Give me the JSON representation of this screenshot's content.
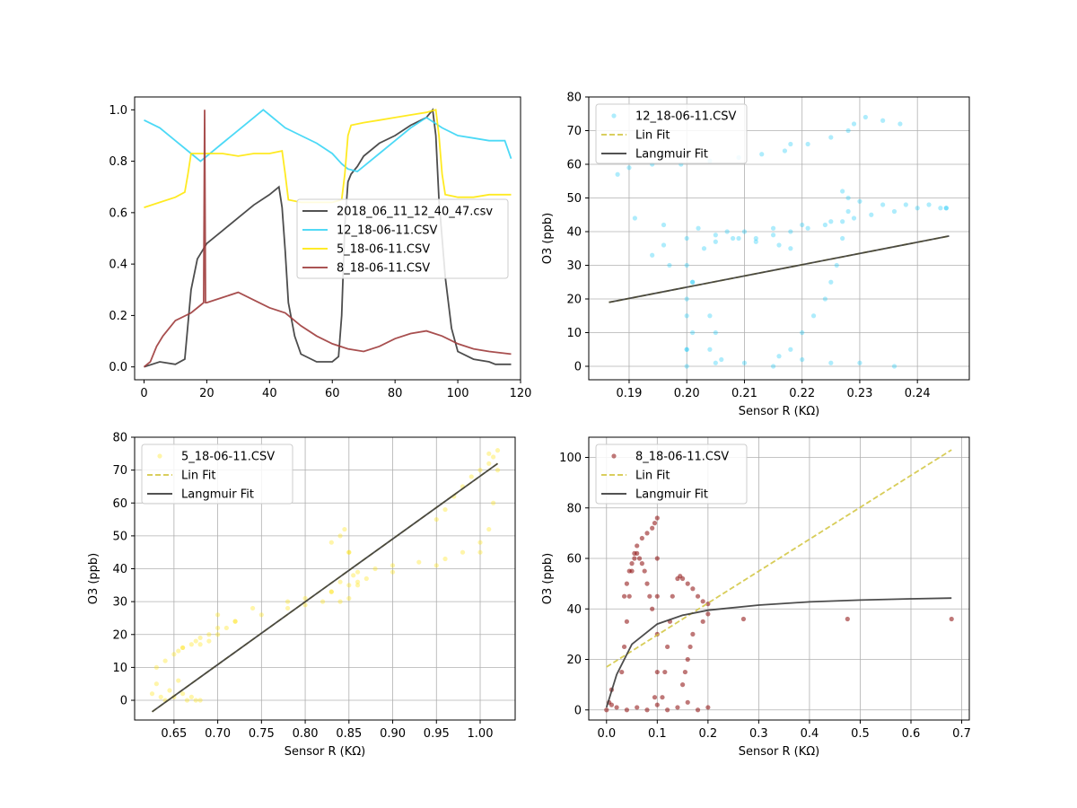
{
  "chart_data": [
    {
      "type": "line",
      "title": "",
      "xlabel": "",
      "ylabel": "",
      "xlim": [
        -3,
        120
      ],
      "ylim": [
        -0.05,
        1.05
      ],
      "xticks": [
        0,
        20,
        40,
        60,
        80,
        100,
        120
      ],
      "yticks": [
        0.0,
        0.2,
        0.4,
        0.6,
        0.8,
        1.0
      ],
      "grid": false,
      "legend_position": "center-right",
      "series": [
        {
          "name": "2018_06_11_12_40_47.csv",
          "color": "#3a3a3a",
          "x": [
            0,
            5,
            10,
            13,
            15,
            17,
            20,
            25,
            30,
            35,
            40,
            43,
            44,
            45,
            46,
            48,
            50,
            55,
            60,
            62,
            63,
            64,
            65,
            66,
            68,
            70,
            75,
            80,
            85,
            90,
            92,
            93,
            94,
            96,
            98,
            100,
            105,
            110,
            112,
            117
          ],
          "y": [
            0.0,
            0.02,
            0.01,
            0.03,
            0.3,
            0.42,
            0.48,
            0.53,
            0.58,
            0.63,
            0.67,
            0.7,
            0.62,
            0.45,
            0.25,
            0.12,
            0.05,
            0.02,
            0.02,
            0.04,
            0.2,
            0.55,
            0.72,
            0.75,
            0.78,
            0.82,
            0.87,
            0.9,
            0.94,
            0.97,
            1.0,
            0.9,
            0.65,
            0.35,
            0.15,
            0.06,
            0.03,
            0.02,
            0.01,
            0.01
          ]
        },
        {
          "name": "12_18-06-11.CSV",
          "color": "#39d5f5",
          "x": [
            0,
            5,
            10,
            15,
            18,
            20,
            25,
            30,
            35,
            38,
            40,
            45,
            50,
            55,
            60,
            63,
            65,
            68,
            70,
            75,
            80,
            85,
            90,
            95,
            100,
            105,
            110,
            115,
            117
          ],
          "y": [
            0.96,
            0.93,
            0.88,
            0.83,
            0.8,
            0.82,
            0.87,
            0.92,
            0.97,
            1.0,
            0.98,
            0.93,
            0.9,
            0.87,
            0.83,
            0.79,
            0.77,
            0.76,
            0.78,
            0.83,
            0.88,
            0.93,
            0.97,
            0.93,
            0.9,
            0.89,
            0.88,
            0.88,
            0.81
          ]
        },
        {
          "name": "5_18-06-11.CSV",
          "color": "#ffe80a",
          "x": [
            0,
            5,
            10,
            13,
            14,
            15,
            20,
            25,
            30,
            35,
            40,
            44,
            45,
            46,
            50,
            55,
            60,
            63,
            64,
            65,
            66,
            70,
            75,
            80,
            85,
            90,
            93,
            94,
            95,
            96,
            100,
            105,
            110,
            117
          ],
          "y": [
            0.62,
            0.64,
            0.66,
            0.68,
            0.75,
            0.83,
            0.83,
            0.83,
            0.82,
            0.83,
            0.83,
            0.84,
            0.75,
            0.65,
            0.64,
            0.64,
            0.64,
            0.65,
            0.75,
            0.9,
            0.94,
            0.95,
            0.96,
            0.97,
            0.98,
            0.99,
            1.0,
            0.9,
            0.75,
            0.67,
            0.66,
            0.66,
            0.67,
            0.67
          ]
        },
        {
          "name": "8_18-06-11.CSV",
          "color": "#9e3c3c",
          "x": [
            0,
            2,
            4,
            6,
            10,
            15,
            18,
            19,
            19.3,
            19.6,
            20,
            25,
            30,
            35,
            40,
            45,
            50,
            55,
            60,
            65,
            70,
            75,
            80,
            85,
            90,
            95,
            100,
            105,
            110,
            117
          ],
          "y": [
            0.0,
            0.02,
            0.08,
            0.12,
            0.18,
            0.21,
            0.24,
            0.25,
            1.0,
            0.25,
            0.25,
            0.27,
            0.29,
            0.26,
            0.23,
            0.21,
            0.16,
            0.12,
            0.09,
            0.07,
            0.06,
            0.08,
            0.11,
            0.13,
            0.14,
            0.12,
            0.09,
            0.07,
            0.06,
            0.05
          ]
        }
      ]
    },
    {
      "type": "scatter",
      "title": "",
      "xlabel": "Sensor R (KΩ)",
      "ylabel": "O3 (ppb)",
      "xlim": [
        0.183,
        0.249
      ],
      "ylim": [
        -4,
        80
      ],
      "xticks": [
        0.19,
        0.2,
        0.21,
        0.22,
        0.23,
        0.24
      ],
      "yticks": [
        0,
        10,
        20,
        30,
        40,
        50,
        60,
        70,
        80
      ],
      "grid": true,
      "legend_position": "top-left",
      "series": [
        {
          "name": "12_18-06-11.CSV",
          "kind": "scatter",
          "color": "#18c8f5",
          "x": [
            0.2,
            0.205,
            0.21,
            0.215,
            0.22,
            0.225,
            0.23,
            0.236,
            0.2,
            0.2,
            0.201,
            0.203,
            0.205,
            0.208,
            0.212,
            0.215,
            0.218,
            0.221,
            0.224,
            0.227,
            0.229,
            0.232,
            0.236,
            0.24,
            0.244,
            0.245,
            0.197,
            0.194,
            0.196,
            0.2,
            0.205,
            0.21,
            0.215,
            0.22,
            0.225,
            0.228,
            0.227,
            0.228,
            0.23,
            0.234,
            0.238,
            0.242,
            0.245,
            0.188,
            0.19,
            0.194,
            0.199,
            0.204,
            0.209,
            0.213,
            0.217,
            0.218,
            0.221,
            0.225,
            0.228,
            0.229,
            0.231,
            0.234,
            0.237,
            0.191,
            0.196,
            0.202,
            0.207,
            0.209,
            0.212,
            0.216,
            0.218,
            0.2,
            0.2,
            0.201,
            0.2,
            0.201,
            0.204,
            0.205,
            0.204,
            0.206,
            0.216,
            0.218,
            0.22,
            0.222,
            0.224,
            0.225,
            0.226,
            0.227
          ],
          "y": [
            0,
            1,
            1,
            0,
            2,
            1,
            1,
            0,
            5,
            15,
            25,
            35,
            37,
            38,
            38,
            39,
            40,
            41,
            42,
            43,
            44,
            45,
            46,
            47,
            47,
            47,
            30,
            33,
            36,
            38,
            39,
            40,
            41,
            42,
            43,
            46,
            52,
            50,
            49,
            48,
            48,
            48,
            47,
            57,
            59,
            60,
            60,
            61,
            62,
            63,
            64,
            66,
            66,
            68,
            70,
            72,
            74,
            73,
            72,
            44,
            42,
            41,
            40,
            38,
            37,
            36,
            35,
            30,
            20,
            10,
            5,
            25,
            15,
            10,
            5,
            2,
            3,
            5,
            10,
            15,
            20,
            25,
            30,
            38
          ]
        },
        {
          "name": "Lin Fit",
          "kind": "line",
          "dash": true,
          "color": "#d4c847",
          "x": [
            0.1865,
            0.2455
          ],
          "y": [
            19,
            38.7
          ]
        },
        {
          "name": "Langmuir Fit",
          "kind": "line",
          "color": "#3a3a3a",
          "x": [
            0.1865,
            0.2455
          ],
          "y": [
            19,
            38.7
          ]
        }
      ]
    },
    {
      "type": "scatter",
      "title": "",
      "xlabel": "Sensor R (KΩ)",
      "ylabel": "O3 (ppb)",
      "xlim": [
        0.605,
        1.04
      ],
      "ylim": [
        -6,
        80
      ],
      "xticks": [
        0.65,
        0.7,
        0.75,
        0.8,
        0.85,
        0.9,
        0.95,
        1.0
      ],
      "yticks": [
        0,
        10,
        20,
        30,
        40,
        50,
        60,
        70,
        80
      ],
      "grid": true,
      "legend_position": "top-left",
      "series": [
        {
          "name": "5_18-06-11.CSV",
          "kind": "scatter",
          "color": "#ffe30a",
          "x": [
            0.625,
            0.63,
            0.635,
            0.64,
            0.645,
            0.65,
            0.655,
            0.66,
            0.665,
            0.67,
            0.675,
            0.68,
            0.63,
            0.64,
            0.65,
            0.655,
            0.66,
            0.67,
            0.675,
            0.68,
            0.69,
            0.7,
            0.72,
            0.75,
            0.78,
            0.8,
            0.82,
            0.84,
            0.85,
            0.86,
            0.85,
            0.84,
            0.83,
            0.845,
            0.85,
            0.855,
            0.86,
            0.83,
            0.84,
            0.86,
            0.88,
            0.9,
            0.93,
            0.96,
            0.98,
            1.0,
            1.01,
            1.015,
            1.02,
            1.02,
            1.01,
            0.95,
            0.96,
            0.97,
            0.98,
            0.99,
            1.0,
            1.01,
            1.015,
            0.7,
            0.74,
            0.78,
            0.8,
            0.83,
            0.85,
            0.87,
            0.9,
            0.95,
            1.0,
            0.66,
            0.68,
            0.69,
            0.7,
            0.71,
            0.72
          ],
          "y": [
            2,
            5,
            1,
            0,
            3,
            1,
            6,
            2,
            0,
            1,
            0,
            0,
            10,
            12,
            14,
            15,
            16,
            17,
            18,
            19,
            20,
            22,
            24,
            26,
            28,
            29,
            30,
            30,
            31,
            36,
            45,
            50,
            48,
            52,
            45,
            38,
            35,
            33,
            36,
            39,
            40,
            41,
            42,
            43,
            45,
            48,
            52,
            60,
            70,
            76,
            75,
            55,
            58,
            62,
            65,
            68,
            70,
            72,
            74,
            26,
            28,
            30,
            31,
            33,
            35,
            37,
            39,
            41,
            45,
            16,
            17,
            18,
            20,
            22,
            24
          ]
        },
        {
          "name": "Lin Fit",
          "kind": "line",
          "dash": true,
          "color": "#d4c847",
          "x": [
            0.625,
            1.02
          ],
          "y": [
            -3.5,
            72
          ]
        },
        {
          "name": "Langmuir Fit",
          "kind": "line",
          "color": "#3a3a3a",
          "x": [
            0.625,
            1.02
          ],
          "y": [
            -3.5,
            72
          ]
        }
      ]
    },
    {
      "type": "scatter",
      "title": "",
      "xlabel": "Sensor R (KΩ)",
      "ylabel": "O3 (ppb)",
      "xlim": [
        -0.035,
        0.715
      ],
      "ylim": [
        -4,
        108
      ],
      "xticks": [
        0.0,
        0.1,
        0.2,
        0.3,
        0.4,
        0.5,
        0.6,
        0.7
      ],
      "yticks": [
        0,
        20,
        40,
        60,
        80,
        100
      ],
      "grid": true,
      "legend_position": "top-left",
      "series": [
        {
          "name": "8_18-06-11.CSV",
          "kind": "scatter",
          "color": "#8b0a0a",
          "x": [
            0.0,
            0.01,
            0.02,
            0.04,
            0.06,
            0.08,
            0.1,
            0.12,
            0.14,
            0.16,
            0.18,
            0.2,
            0.005,
            0.01,
            0.03,
            0.035,
            0.04,
            0.045,
            0.05,
            0.055,
            0.06,
            0.07,
            0.08,
            0.09,
            0.095,
            0.1,
            0.1,
            0.1,
            0.1,
            0.1,
            0.095,
            0.09,
            0.085,
            0.08,
            0.075,
            0.07,
            0.065,
            0.06,
            0.055,
            0.05,
            0.045,
            0.04,
            0.035,
            0.11,
            0.115,
            0.12,
            0.125,
            0.13,
            0.14,
            0.145,
            0.15,
            0.16,
            0.17,
            0.18,
            0.19,
            0.2,
            0.2,
            0.19,
            0.17,
            0.165,
            0.16,
            0.155,
            0.15,
            0.27,
            0.475,
            0.68
          ],
          "y": [
            0,
            2,
            1,
            0,
            1,
            0,
            2,
            0,
            1,
            3,
            0,
            1,
            3,
            8,
            15,
            25,
            35,
            45,
            55,
            62,
            65,
            68,
            70,
            72,
            74,
            76,
            60,
            45,
            30,
            15,
            5,
            40,
            45,
            50,
            55,
            58,
            60,
            62,
            60,
            58,
            55,
            50,
            45,
            5,
            15,
            25,
            35,
            45,
            52,
            53,
            52,
            50,
            48,
            45,
            43,
            42,
            38,
            35,
            30,
            25,
            20,
            15,
            10,
            36,
            36,
            36
          ]
        },
        {
          "name": "Lin Fit",
          "kind": "line",
          "dash": true,
          "color": "#d4c847",
          "x": [
            0.0,
            0.68
          ],
          "y": [
            17,
            103
          ]
        },
        {
          "name": "Langmuir Fit",
          "kind": "line",
          "color": "#3a3a3a",
          "x": [
            0.0,
            0.02,
            0.05,
            0.1,
            0.15,
            0.2,
            0.3,
            0.4,
            0.5,
            0.6,
            0.68
          ],
          "y": [
            1,
            14,
            26,
            34,
            37.5,
            39.5,
            41.5,
            42.8,
            43.5,
            44,
            44.3
          ]
        }
      ]
    }
  ]
}
